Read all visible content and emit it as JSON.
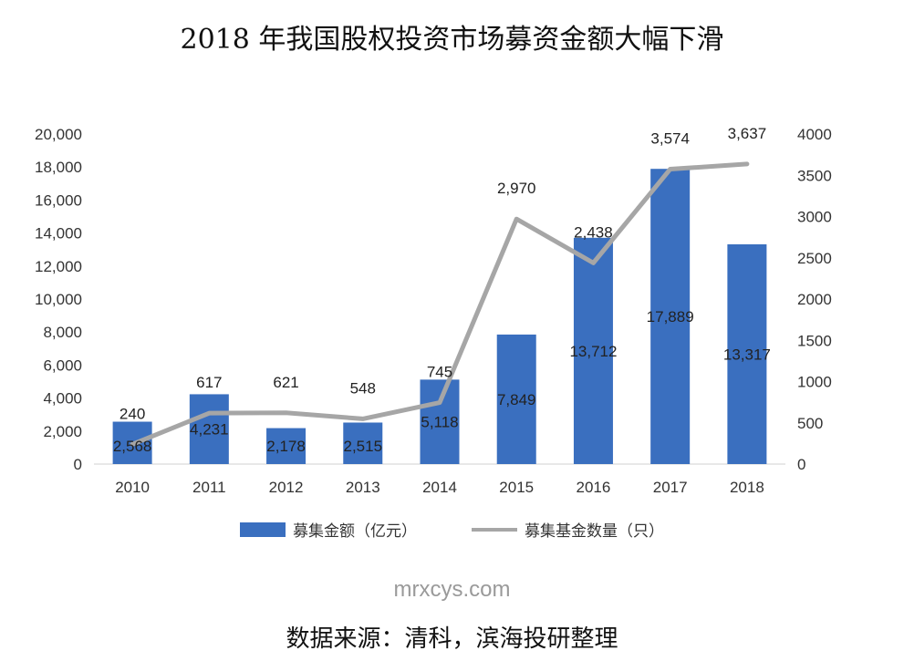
{
  "chart_data": {
    "type": "bar",
    "title": "2018 年我国股权投资市场募资金额大幅下滑",
    "categories": [
      "2010",
      "2011",
      "2012",
      "2013",
      "2014",
      "2015",
      "2016",
      "2017",
      "2018"
    ],
    "series": [
      {
        "name": "募集金额（亿元）",
        "type": "bar",
        "axis": "left",
        "values": [
          2568,
          4231,
          2178,
          2515,
          5118,
          7849,
          13712,
          17889,
          13317
        ],
        "labels": [
          "2,568",
          "4,231",
          "2,178",
          "2,515",
          "5,118",
          "7,849",
          "13,712",
          "17,889",
          "13,317"
        ]
      },
      {
        "name": "募集基金数量（只）",
        "type": "line",
        "axis": "right",
        "values": [
          240,
          617,
          621,
          548,
          745,
          2970,
          2438,
          3574,
          3637
        ],
        "labels": [
          "240",
          "617",
          "621",
          "548",
          "745",
          "2,970",
          "2,438",
          "3,574",
          "3,637"
        ]
      }
    ],
    "y_left": {
      "range": [
        0,
        20000
      ],
      "ticks": [
        "0",
        "2,000",
        "4,000",
        "6,000",
        "8,000",
        "10,000",
        "12,000",
        "14,000",
        "16,000",
        "18,000",
        "20,000"
      ]
    },
    "y_right": {
      "range": [
        0,
        4000
      ],
      "ticks": [
        "0",
        "500",
        "1000",
        "1500",
        "2000",
        "2500",
        "3000",
        "3500",
        "4000"
      ]
    },
    "grid": false,
    "legend_position": "bottom"
  },
  "colors": {
    "bar": "#3a6fbf",
    "line": "#a6a6a6"
  },
  "watermark": "mrxcys.com",
  "source": "数据来源：清科，滨海投研整理"
}
